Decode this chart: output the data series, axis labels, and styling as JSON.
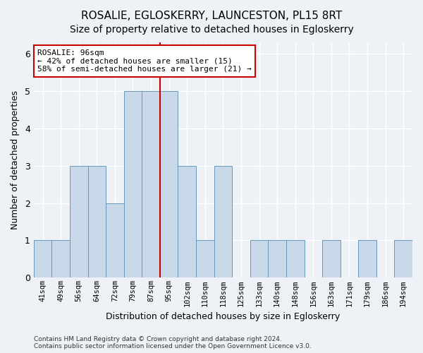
{
  "title": "ROSALIE, EGLOSKERRY, LAUNCESTON, PL15 8RT",
  "subtitle": "Size of property relative to detached houses in Egloskerry",
  "xlabel": "Distribution of detached houses by size in Egloskerry",
  "ylabel": "Number of detached properties",
  "footer1": "Contains HM Land Registry data © Crown copyright and database right 2024.",
  "footer2": "Contains public sector information licensed under the Open Government Licence v3.0.",
  "categories": [
    "41sqm",
    "49sqm",
    "56sqm",
    "64sqm",
    "72sqm",
    "79sqm",
    "87sqm",
    "95sqm",
    "102sqm",
    "110sqm",
    "118sqm",
    "125sqm",
    "133sqm",
    "140sqm",
    "148sqm",
    "156sqm",
    "163sqm",
    "171sqm",
    "179sqm",
    "186sqm",
    "194sqm"
  ],
  "values": [
    1,
    1,
    3,
    3,
    2,
    5,
    5,
    5,
    3,
    1,
    3,
    0,
    1,
    1,
    1,
    0,
    1,
    0,
    1,
    0,
    1
  ],
  "bar_color": "#c8d8e8",
  "bar_edge_color": "#6699bb",
  "highlight_line_color": "#cc0000",
  "annotation_line1": "ROSALIE: 96sqm",
  "annotation_line2": "← 42% of detached houses are smaller (15)",
  "annotation_line3": "58% of semi-detached houses are larger (21) →",
  "annotation_box_color": "#ffffff",
  "annotation_box_edge": "#cc0000",
  "ylim": [
    0,
    6.3
  ],
  "yticks": [
    0,
    1,
    2,
    3,
    4,
    5,
    6
  ],
  "background_color": "#eef2f7",
  "title_fontsize": 11,
  "subtitle_fontsize": 10
}
